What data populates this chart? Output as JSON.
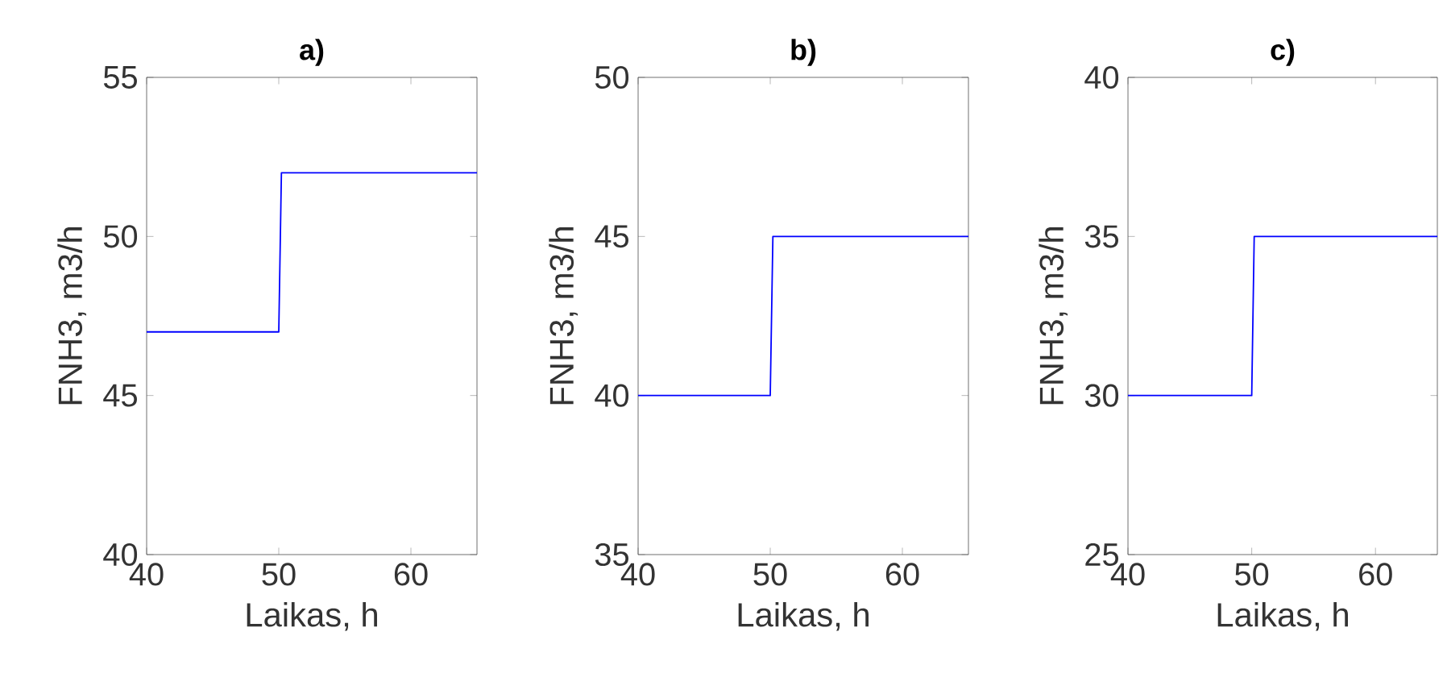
{
  "chart_data": [
    {
      "type": "line",
      "title": "a)",
      "xlabel": "Laikas, h",
      "ylabel": "FNH3, m3/h",
      "x": [
        40,
        50,
        50.2,
        65
      ],
      "series": [
        {
          "color": "#0000ff",
          "values": [
            47,
            47,
            52,
            52
          ]
        }
      ],
      "xlim": [
        40,
        65
      ],
      "ylim": [
        40,
        55
      ],
      "xticks": [
        40,
        50,
        60
      ],
      "yticks": [
        40,
        45,
        50,
        55
      ]
    },
    {
      "type": "line",
      "title": "b)",
      "xlabel": "Laikas, h",
      "ylabel": "FNH3, m3/h",
      "x": [
        40,
        50,
        50.2,
        65
      ],
      "series": [
        {
          "color": "#0000ff",
          "values": [
            40,
            40,
            45,
            45
          ]
        }
      ],
      "xlim": [
        40,
        65
      ],
      "ylim": [
        35,
        50
      ],
      "xticks": [
        40,
        50,
        60
      ],
      "yticks": [
        35,
        40,
        45,
        50
      ]
    },
    {
      "type": "line",
      "title": "c)",
      "xlabel": "Laikas, h",
      "ylabel": "FNH3, m3/h",
      "x": [
        40,
        50,
        50.2,
        65
      ],
      "series": [
        {
          "color": "#0000ff",
          "values": [
            30,
            30,
            35,
            35
          ]
        }
      ],
      "xlim": [
        40,
        65
      ],
      "ylim": [
        25,
        40
      ],
      "xticks": [
        40,
        50,
        60
      ],
      "yticks": [
        25,
        30,
        35,
        40
      ]
    }
  ]
}
